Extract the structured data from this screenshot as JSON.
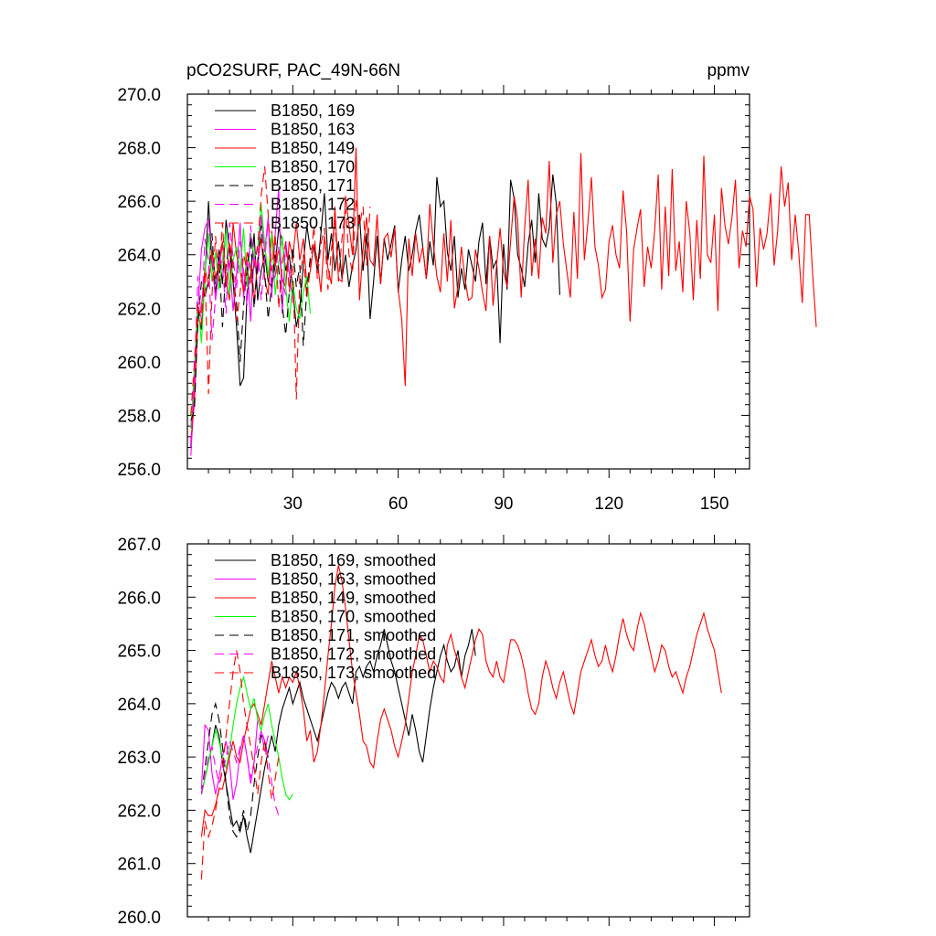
{
  "page": {
    "title_left": "pCO2SURF, PAC_49N-66N",
    "title_right": "ppmv"
  },
  "chart_data": [
    {
      "type": "line",
      "xlim": [
        0,
        160
      ],
      "ylim": [
        256,
        270
      ],
      "x_ticks": [
        30,
        60,
        90,
        120,
        150
      ],
      "x_tick_labels": [
        "30",
        "60",
        "90",
        "120",
        "150"
      ],
      "y_ticks": [
        256,
        258,
        260,
        262,
        264,
        266,
        268,
        270
      ],
      "y_tick_labels": [
        "256.0",
        "258.0",
        "260.0",
        "262.0",
        "264.0",
        "266.0",
        "268.0",
        "270.0"
      ],
      "legend_position": "top-left",
      "series": [
        {
          "name": "B1850, 169",
          "color": "#000000",
          "dash": "solid",
          "x_start": 1,
          "values": [
            256.8,
            259.0,
            261.8,
            261.2,
            263.0,
            266.0,
            263.7,
            262.5,
            264.2,
            262.9,
            265.3,
            264.2,
            263.0,
            261.3,
            259.1,
            259.4,
            262.6,
            263.2,
            264.8,
            262.3,
            263.4,
            264.0,
            263.0,
            262.8,
            263.6,
            265.0,
            264.5,
            263.4,
            264.0,
            262.7,
            261.3,
            262.0,
            263.6,
            265.1,
            264.2,
            264.3,
            263.4,
            264.8,
            266.3,
            263.8,
            264.8,
            263.4,
            264.5,
            263.1,
            264.0,
            262.8,
            263.6,
            264.2,
            265.5,
            263.4,
            264.8,
            261.6,
            263.0,
            264.7,
            262.9,
            264.6,
            263.8,
            264.4,
            265.1,
            262.6,
            263.8,
            264.7,
            263.4,
            264.0,
            264.9,
            265.5,
            264.3,
            263.1,
            264.5,
            263.6,
            266.9,
            265.8,
            266.0,
            264.1,
            263.4,
            264.7,
            262.4,
            263.5,
            262.7,
            264.2,
            263.6,
            263.0,
            264.5,
            265.2,
            262.9,
            264.7,
            263.5,
            263.8,
            260.7,
            264.4,
            262.7,
            266.8,
            266.1,
            264.0,
            263.5,
            262.8,
            264.4,
            265.3,
            263.7,
            266.3,
            264.6,
            264.3,
            265.0,
            267.0,
            265.9,
            262.5
          ]
        },
        {
          "name": "B1850, 163",
          "color": "#ff00ff",
          "dash": "solid",
          "x_start": 1,
          "values": [
            256.5,
            259.0,
            262.0,
            264.2,
            265.0,
            265.3,
            263.9,
            262.3,
            263.5,
            264.4,
            262.8,
            263.8,
            261.9,
            263.3,
            265.2,
            262.4,
            263.8,
            261.5,
            264.0,
            263.3,
            265.5,
            264.1,
            265.4,
            262.4,
            264.8,
            266.5,
            261.8,
            264.5,
            263.3,
            262.2
          ]
        },
        {
          "name": "B1850, 149",
          "color": "#ff0000",
          "dash": "solid",
          "x_start": 1,
          "values": [
            257.0,
            258.5,
            261.5,
            262.0,
            263.5,
            262.8,
            264.2,
            263.1,
            263.8,
            264.5,
            263.0,
            262.3,
            265.2,
            264.0,
            263.4,
            262.6,
            264.1,
            263.5,
            262.2,
            263.8,
            264.6,
            263.1,
            262.5,
            264.9,
            263.6,
            264.2,
            263.1,
            262.8,
            264.5,
            263.9,
            265.2,
            263.8,
            264.6,
            262.9,
            263.4,
            264.4,
            263.8,
            262.6,
            264.7,
            263.5,
            262.9,
            265.8,
            263.1,
            263.0,
            266.2,
            265.1,
            264.0,
            268.0,
            262.3,
            264.2,
            265.4,
            263.8,
            263.6,
            265.5,
            262.9,
            264.6,
            264.8,
            263.9,
            265.0,
            262.7,
            261.6,
            259.1,
            264.6,
            263.2,
            264.8,
            263.7,
            264.3,
            263.1,
            265.9,
            264.4,
            263.2,
            262.6,
            264.8,
            263.0,
            265.3,
            262.0,
            262.8,
            264.3,
            263.1,
            262.3,
            262.4,
            264.2,
            263.5,
            262.6,
            261.9,
            264.7,
            262.1,
            263.6,
            265.0,
            263.4,
            262.8,
            264.5,
            266.2,
            265.3,
            262.4,
            265.0,
            266.8,
            263.2,
            264.6,
            263.1,
            265.4,
            264.8,
            267.5,
            263.7,
            265.5,
            266.0,
            264.4,
            263.4,
            262.4,
            265.6,
            263.1,
            267.8,
            263.8,
            265.2,
            266.9,
            264.3,
            263.6,
            262.4,
            262.7,
            264.5,
            265.1,
            264.0,
            263.5,
            266.4,
            264.9,
            261.5,
            264.2,
            265.0,
            265.7,
            262.8,
            264.3,
            263.5,
            264.9,
            267.0,
            262.7,
            265.8,
            263.2,
            267.2,
            263.4,
            264.5,
            262.6,
            266.0,
            264.8,
            262.3,
            265.3,
            263.1,
            267.7,
            264.0,
            263.7,
            265.5,
            261.9,
            266.5,
            265.1,
            264.4,
            265.4,
            266.8,
            263.5,
            264.9,
            264.3,
            266.2,
            265.7,
            262.8,
            265.0,
            264.2,
            264.8,
            266.3,
            263.6,
            264.9,
            267.3,
            265.8,
            266.7,
            263.8,
            265.5,
            264.1,
            262.2,
            265.5,
            265.5,
            263.2,
            261.3
          ]
        },
        {
          "name": "B1850, 170",
          "color": "#00ff00",
          "dash": "solid",
          "x_start": 1,
          "values": [
            257.5,
            259.8,
            262.2,
            260.7,
            263.2,
            264.8,
            263.0,
            264.1,
            262.7,
            263.8,
            264.9,
            262.5,
            263.8,
            264.3,
            263.3,
            265.0,
            262.8,
            264.8,
            263.9,
            264.2,
            265.9,
            264.4,
            263.2,
            264.8,
            262.5,
            263.7,
            264.7,
            262.8,
            261.5,
            263.0,
            262.0,
            261.6,
            262.6,
            263.2,
            261.8
          ]
        },
        {
          "name": "B1850, 171",
          "color": "#000000",
          "dash": "dashed",
          "x_start": 1,
          "values": [
            257.8,
            258.2,
            261.5,
            263.0,
            262.4,
            263.1,
            264.8,
            262.6,
            263.9,
            261.3,
            263.6,
            264.4,
            263.1,
            262.2,
            260.0,
            262.1,
            263.4,
            264.7,
            262.0,
            263.7,
            265.1,
            263.3,
            261.6,
            262.9,
            264.0,
            263.5,
            262.1,
            261.0,
            262.6,
            264.3,
            262.8,
            263.6,
            260.6,
            262.7,
            263.9
          ]
        },
        {
          "name": "B1850, 172",
          "color": "#ff00ff",
          "dash": "dashed",
          "x_start": 1,
          "values": [
            257.0,
            259.5,
            263.2,
            261.5,
            264.6,
            263.8,
            260.8,
            262.4,
            264.0,
            263.6,
            261.8,
            265.2,
            263.9,
            262.7,
            264.5,
            263.4,
            262.1,
            265.1,
            263.5,
            264.4,
            262.3,
            263.8,
            265.3,
            262.9,
            263.2,
            264.3,
            263.0,
            262.5
          ]
        },
        {
          "name": "B1850, 173",
          "color": "#ff0000",
          "dash": "dashed",
          "x_start": 1,
          "values": [
            258.0,
            260.0,
            262.2,
            261.4,
            263.4,
            258.8,
            262.5,
            264.7,
            263.0,
            265.2,
            262.8,
            264.5,
            263.6,
            261.5,
            262.6,
            264.0,
            263.4,
            262.9,
            263.6,
            264.3,
            266.2,
            267.3,
            265.5,
            263.4,
            264.8,
            262.0,
            263.7,
            264.5,
            262.6,
            263.9,
            258.6,
            263.2,
            264.0,
            262.4,
            263.5,
            265.1,
            263.1,
            264.4,
            265.0,
            262.7,
            264.2,
            265.3,
            263.0,
            264.6,
            265.7,
            264.0,
            263.3,
            266.1,
            265.1,
            265.8,
            263.6,
            265.8
          ]
        }
      ]
    },
    {
      "type": "line",
      "xlim": [
        0,
        160
      ],
      "ylim": [
        260,
        267
      ],
      "x_ticks": [
        30,
        60,
        90,
        120,
        150
      ],
      "x_tick_labels": [],
      "y_ticks": [
        260,
        261,
        262,
        263,
        264,
        265,
        266,
        267
      ],
      "y_tick_labels": [
        "260.0",
        "261.0",
        "262.0",
        "263.0",
        "264.0",
        "265.0",
        "266.0",
        "267.0"
      ],
      "legend_position": "top-left",
      "series": [
        {
          "name": "B1850, 169, smoothed",
          "color": "#000000",
          "dash": "solid",
          "x_start": 4,
          "values": [
            262.3,
            262.6,
            262.9,
            263.2,
            263.6,
            263.4,
            262.9,
            262.5,
            262.1,
            261.7,
            261.8,
            261.6,
            261.9,
            261.5,
            261.2,
            261.6,
            262.0,
            262.4,
            262.8,
            263.1,
            263.4,
            263.1,
            263.6,
            263.9,
            264.1,
            264.3,
            264.0,
            264.2,
            264.4,
            264.1,
            263.9,
            263.7,
            263.5,
            263.3,
            263.6,
            263.9,
            264.2,
            264.4,
            264.3,
            264.1,
            264.3,
            264.4,
            264.2,
            264.0,
            264.6,
            264.7,
            264.5,
            264.7,
            264.8,
            264.6,
            264.9,
            265.1,
            265.4,
            265.1,
            264.8,
            264.6,
            264.3,
            264.0,
            263.7,
            263.4,
            263.8,
            263.5,
            263.1,
            262.9,
            263.4,
            263.9,
            264.3,
            264.6,
            264.9,
            265.1,
            264.8,
            264.6,
            264.7,
            265.0,
            264.5,
            264.9,
            265.1,
            265.4,
            264.9
          ]
        },
        {
          "name": "B1850, 163, smoothed",
          "color": "#ff00ff",
          "dash": "solid",
          "x_start": 4,
          "values": [
            262.4,
            263.6,
            263.5,
            262.7,
            262.3,
            262.6,
            263.0,
            263.3,
            262.9,
            262.2,
            262.5,
            263.1,
            263.4,
            263.0,
            262.5,
            262.9,
            263.7,
            263.5,
            263.1,
            263.4
          ]
        },
        {
          "name": "B1850, 149, smoothed",
          "color": "#ff0000",
          "dash": "solid",
          "x_start": 4,
          "values": [
            261.5,
            262.0,
            261.9,
            261.9,
            262.1,
            262.4,
            262.4,
            262.7,
            263.0,
            263.3,
            263.0,
            262.9,
            263.3,
            263.6,
            263.9,
            264.0,
            263.8,
            263.6,
            264.0,
            264.4,
            264.8,
            264.5,
            264.2,
            264.5,
            264.3,
            264.5,
            264.4,
            264.6,
            264.3,
            263.9,
            263.3,
            263.5,
            262.9,
            263.1,
            263.6,
            264.2,
            264.9,
            265.5,
            266.2,
            266.6,
            266.3,
            265.8,
            265.2,
            264.6,
            264.2,
            263.8,
            263.3,
            263.2,
            262.9,
            262.8,
            263.3,
            263.7,
            263.9,
            263.7,
            263.5,
            263.2,
            263.0,
            263.3,
            263.6,
            264.1,
            264.6,
            264.9,
            265.3,
            265.2,
            264.9,
            264.6,
            264.8,
            264.7,
            264.5,
            264.4,
            265.1,
            265.3,
            265.0,
            264.8,
            264.5,
            264.3,
            264.6,
            264.9,
            265.2,
            265.4,
            265.3,
            264.8,
            264.6,
            264.5,
            264.8,
            264.5,
            264.4,
            264.8,
            265.2,
            265.2,
            265.1,
            264.9,
            264.6,
            264.2,
            263.9,
            263.8,
            264.0,
            264.5,
            264.8,
            264.6,
            264.3,
            264.1,
            264.4,
            264.6,
            264.3,
            264.0,
            263.8,
            264.2,
            264.6,
            264.8,
            265.0,
            265.2,
            264.9,
            264.7,
            264.8,
            265.1,
            264.8,
            264.6,
            264.9,
            265.3,
            265.6,
            265.3,
            265.1,
            265.0,
            265.4,
            265.7,
            265.5,
            265.2,
            264.9,
            264.6,
            264.8,
            265.1,
            265.0,
            264.7,
            264.5,
            264.6,
            264.4,
            264.2,
            264.5,
            264.7,
            265.0,
            265.3,
            265.5,
            265.7,
            265.4,
            265.2,
            265.0,
            264.6,
            264.2
          ]
        },
        {
          "name": "B1850, 170, smoothed",
          "color": "#00ff00",
          "dash": "solid",
          "x_start": 4,
          "values": [
            262.3,
            262.6,
            262.9,
            263.2,
            263.5,
            263.3,
            263.0,
            262.8,
            263.1,
            263.6,
            264.0,
            264.3,
            264.5,
            264.2,
            263.9,
            264.1,
            263.7,
            263.5,
            263.8,
            264.0,
            263.6,
            263.3,
            263.0,
            262.6,
            262.3,
            262.2,
            262.3
          ]
        },
        {
          "name": "B1850, 171, smoothed",
          "color": "#000000",
          "dash": "dashed",
          "x_start": 4,
          "values": [
            262.3,
            262.8,
            263.3,
            263.8,
            264.0,
            263.7,
            263.2,
            262.5,
            261.9,
            261.6,
            261.5,
            261.7,
            262.0,
            261.6,
            261.9,
            262.5,
            263.0,
            263.4,
            263.3,
            263.0
          ]
        },
        {
          "name": "B1850, 172, smoothed",
          "color": "#ff00ff",
          "dash": "dashed",
          "x_start": 4,
          "values": [
            262.3,
            262.7,
            263.0,
            263.2,
            262.8,
            262.5,
            262.7,
            263.0,
            263.3,
            263.1,
            262.9,
            263.2,
            263.4,
            263.0,
            262.6,
            262.9,
            263.2,
            263.5,
            263.3,
            263.0,
            262.5,
            262.1,
            261.9
          ]
        },
        {
          "name": "B1850, 173, smoothed",
          "color": "#ff0000",
          "dash": "dashed",
          "x_start": 4,
          "values": [
            260.7,
            261.8,
            261.5,
            261.7,
            262.0,
            262.4,
            262.8,
            263.4,
            264.0,
            264.6,
            265.0,
            264.6,
            264.0,
            263.6,
            263.2,
            262.8,
            262.3,
            262.9,
            263.3,
            262.7,
            262.2,
            262.6,
            263.0
          ]
        }
      ]
    }
  ]
}
